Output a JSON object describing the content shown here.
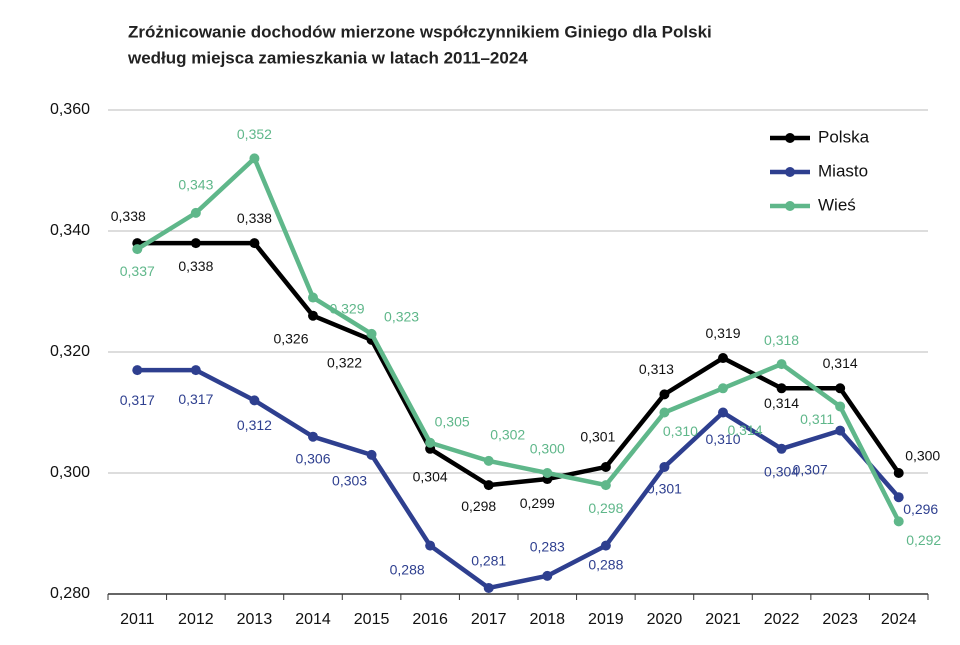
{
  "chart_data": {
    "type": "line",
    "title": [
      "Zróżnicowanie dochodów mierzone współczynnikiem Giniego dla Polski",
      "według miejsca zamieszkania w latach 2011–2024"
    ],
    "categories": [
      "2011",
      "2012",
      "2013",
      "2014",
      "2015",
      "2016",
      "2017",
      "2018",
      "2019",
      "2020",
      "2021",
      "2022",
      "2023",
      "2024"
    ],
    "ylim": [
      0.28,
      0.36
    ],
    "yticks": [
      {
        "value": 0.28,
        "label": "0,280"
      },
      {
        "value": 0.3,
        "label": "0,300"
      },
      {
        "value": 0.32,
        "label": "0,320"
      },
      {
        "value": 0.34,
        "label": "0,340"
      },
      {
        "value": 0.36,
        "label": "0,360"
      }
    ],
    "grid": true,
    "legend": "top-right",
    "series": [
      {
        "name": "Polska",
        "color": "#000000",
        "values": [
          0.338,
          0.338,
          0.338,
          0.326,
          0.322,
          0.304,
          0.298,
          0.299,
          0.301,
          0.313,
          0.319,
          0.314,
          0.314,
          0.3
        ],
        "value_labels": [
          "0,338",
          "0,338",
          "0,338",
          "0,326",
          "0,322",
          "0,304",
          "0,298",
          "0,299",
          "0,301",
          "0,313",
          "0,319",
          "0,314",
          "0,314",
          "0,300"
        ]
      },
      {
        "name": "Miasto",
        "color": "#2e3f8f",
        "values": [
          0.317,
          0.317,
          0.312,
          0.306,
          0.303,
          0.288,
          0.281,
          0.283,
          0.288,
          0.301,
          0.31,
          0.304,
          0.307,
          0.296
        ],
        "value_labels": [
          "0,317",
          "0,317",
          "0,312",
          "0,306",
          "0,303",
          "0,288",
          "0,281",
          "0,283",
          "0,288",
          "0,301",
          "0,310",
          "0,304",
          "0,307",
          "0,296"
        ]
      },
      {
        "name": "Wieś",
        "color": "#5fb78a",
        "values": [
          0.337,
          0.343,
          0.352,
          0.329,
          0.323,
          0.305,
          0.302,
          0.3,
          0.298,
          0.31,
          0.314,
          0.318,
          0.311,
          0.292
        ],
        "value_labels": [
          "0,337",
          "0,343",
          "0,352",
          "0,329",
          "0,323",
          "0,305",
          "0,302",
          "0,300",
          "0,298",
          "0,310",
          "0,314",
          "0,318",
          "0,311",
          "0,292"
        ]
      }
    ]
  }
}
